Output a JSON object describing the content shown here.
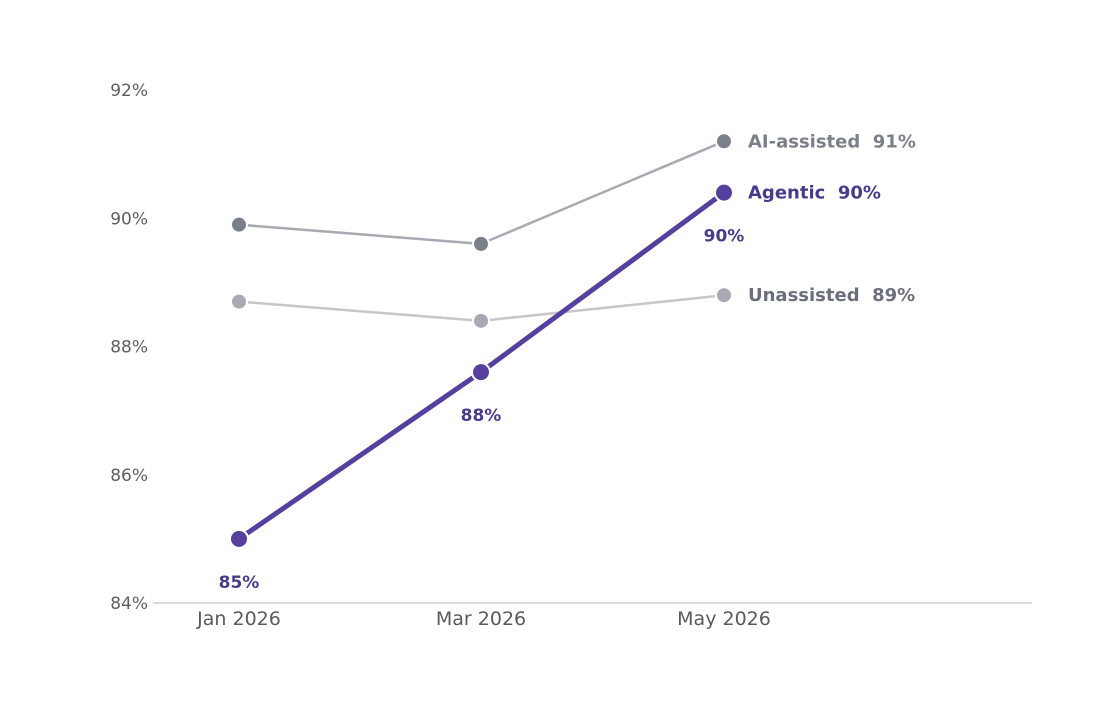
{
  "chart_data": {
    "type": "line",
    "x": [
      "Jan 2026",
      "Mar 2026",
      "May 2026"
    ],
    "ylim": [
      84,
      92
    ],
    "yticks": [
      84,
      86,
      88,
      90,
      92
    ],
    "ytick_format": "%",
    "grid": false,
    "legend": "direct labels at line ends (right)",
    "series": [
      {
        "name": "AI-assisted",
        "values": [
          89.9,
          89.6,
          91.2
        ],
        "end_label": "AI-assisted  91%",
        "line_color": "#a9a9b2",
        "marker_color": "#7a7f8a",
        "label_color": "#7a7f8a"
      },
      {
        "name": "Unassisted",
        "values": [
          88.7,
          88.4,
          88.8
        ],
        "end_label": "Unassisted  89%",
        "line_color": "#c6c6cc",
        "marker_color": "#a9a9b4",
        "label_color": "#6b6f7b"
      },
      {
        "name": "Agentic",
        "values": [
          85.0,
          87.6,
          90.4
        ],
        "end_label": "Agentic  90%",
        "point_labels": [
          "85%",
          "88%",
          "90%"
        ],
        "line_color": "#5540a0",
        "marker_color": "#5540a0",
        "label_color": "#4a3a8c",
        "highlight": true
      }
    ]
  },
  "colors": {
    "axis_line": "#cfcfcf",
    "tick_text": "#5f5f5f",
    "background": "#ffffff"
  }
}
